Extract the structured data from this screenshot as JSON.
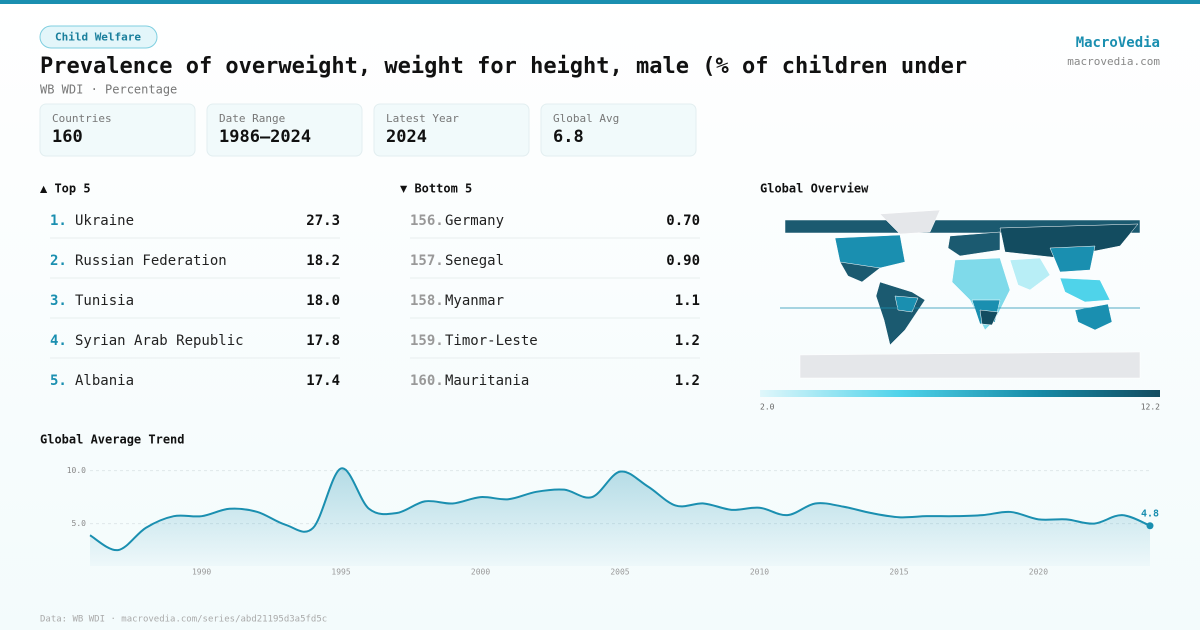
{
  "header": {
    "tag": "Child Welfare",
    "title": "Prevalence of overweight, weight for height, male (% of children under",
    "subtitle": "WB WDI · Percentage",
    "brand": "MacroVedia",
    "site": "macrovedia.com"
  },
  "stats": [
    {
      "label": "Countries",
      "value": "160"
    },
    {
      "label": "Date Range",
      "value": "1986–2024"
    },
    {
      "label": "Latest Year",
      "value": "2024"
    },
    {
      "label": "Global Avg",
      "value": "6.8"
    }
  ],
  "top": {
    "title": "▲ Top 5",
    "rows": [
      [
        "1.",
        "Ukraine",
        "27.3"
      ],
      [
        "2.",
        "Russian Federation",
        "18.2"
      ],
      [
        "3.",
        "Tunisia",
        "18.0"
      ],
      [
        "4.",
        "Syrian Arab Republic",
        "17.8"
      ],
      [
        "5.",
        "Albania",
        "17.4"
      ]
    ]
  },
  "bottom": {
    "title": "▼ Bottom 5",
    "rows": [
      [
        "156.",
        "Germany",
        "0.70"
      ],
      [
        "157.",
        "Senegal",
        "0.90"
      ],
      [
        "158.",
        "Myanmar",
        "1.1"
      ],
      [
        "159.",
        "Timor-Leste",
        "1.2"
      ],
      [
        "160.",
        "Mauritania",
        "1.2"
      ]
    ]
  },
  "map": {
    "title": "Global Overview",
    "scale": [
      {
        "value": 2,
        "label": "2.0"
      },
      {
        "value": 12.2,
        "label": "12.2"
      }
    ]
  },
  "chart_data": {
    "type": "line",
    "title": "Global Average Trend",
    "color": "#1a8fb0",
    "x": [
      1986,
      1987,
      1988,
      1989,
      1990,
      1991,
      1992,
      1993,
      1994,
      1995,
      1996,
      1997,
      1998,
      1999,
      2000,
      2001,
      2002,
      2003,
      2004,
      2005,
      2006,
      2007,
      2008,
      2009,
      2010,
      2011,
      2012,
      2013,
      2014,
      2015,
      2016,
      2017,
      2018,
      2019,
      2020,
      2021,
      2022,
      2023,
      2024
    ],
    "values": [
      3.9,
      2.5,
      4.6,
      5.7,
      5.7,
      6.4,
      6.1,
      4.9,
      4.6,
      10.2,
      6.4,
      6.0,
      7.1,
      6.9,
      7.5,
      7.3,
      8.0,
      8.2,
      7.5,
      9.9,
      8.5,
      6.7,
      6.9,
      6.3,
      6.5,
      5.8,
      6.9,
      6.6,
      6.0,
      5.6,
      5.7,
      5.7,
      5.8,
      6.1,
      5.4,
      5.4,
      5.0,
      5.8,
      4.8
    ],
    "xlim": [
      1986,
      2024
    ],
    "ylim": [
      1,
      11
    ],
    "xticks": [
      1990,
      1995,
      2000,
      2005,
      2010,
      2015,
      2020
    ],
    "yticks": [
      {
        "value": 5,
        "label": "5.0"
      },
      {
        "value": 10,
        "label": "10.0"
      }
    ],
    "grid": true
  },
  "footer": "Data: WB WDI · macrovedia.com/series/abd21195d3a5fd5c"
}
